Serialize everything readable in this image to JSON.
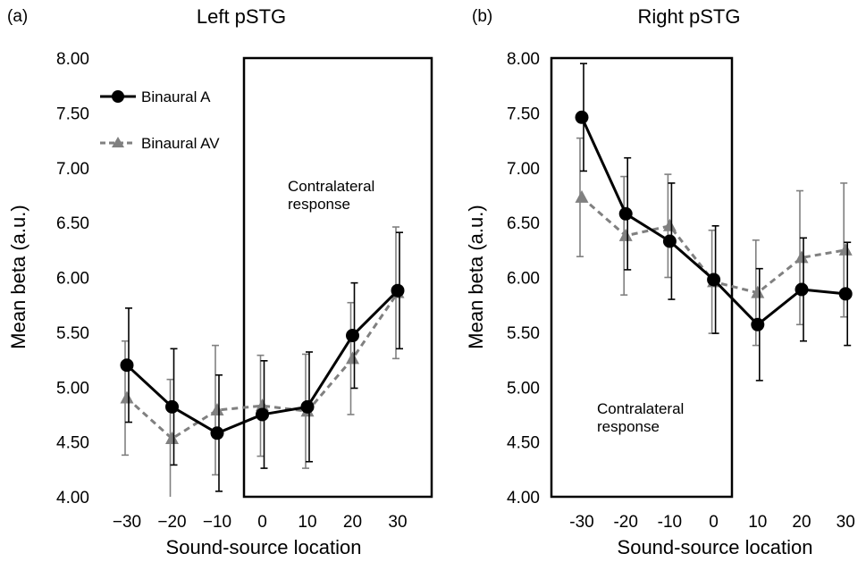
{
  "chart_data": [
    {
      "type": "line",
      "panel_label": "(a)",
      "title": "Left pSTG",
      "xlabel": "Sound-source location",
      "ylabel": "Mean beta (a.u.)",
      "categories": [
        "−30",
        "−20",
        "−10",
        "0",
        "10",
        "20",
        "30"
      ],
      "ylim": [
        4.0,
        8.0
      ],
      "yticks": [
        "4.00",
        "4.50",
        "5.00",
        "5.50",
        "6.00",
        "6.50",
        "7.00",
        "7.50",
        "8.00"
      ],
      "series": [
        {
          "name": "Binaural A",
          "color": "#000000",
          "style": "solid",
          "marker": "circle",
          "values": [
            5.2,
            4.82,
            4.58,
            4.75,
            4.82,
            5.47,
            5.88
          ],
          "err": [
            0.52,
            0.53,
            0.53,
            0.49,
            0.5,
            0.48,
            0.53
          ]
        },
        {
          "name": "Binaural AV",
          "color": "#808080",
          "style": "dashed",
          "marker": "triangle",
          "values": [
            4.9,
            4.53,
            4.79,
            4.83,
            4.78,
            5.26,
            5.86
          ],
          "err": [
            0.52,
            0.54,
            0.59,
            0.46,
            0.52,
            0.51,
            0.6
          ]
        }
      ],
      "legend_position": "upper-left",
      "highlight": {
        "from_category": "0",
        "to_category": "30",
        "label_lines": [
          "Contralateral",
          "response"
        ]
      }
    },
    {
      "type": "line",
      "panel_label": "(b)",
      "title": "Right pSTG",
      "xlabel": "Sound-source location",
      "ylabel": "Mean beta (a.u.)",
      "categories": [
        "-30",
        "-20",
        "-10",
        "0",
        "10",
        "20",
        "30"
      ],
      "ylim": [
        4.0,
        8.0
      ],
      "yticks": [
        "4.00",
        "4.50",
        "5.00",
        "5.50",
        "6.00",
        "6.50",
        "7.00",
        "7.50",
        "8.00"
      ],
      "series": [
        {
          "name": "Binaural A",
          "color": "#000000",
          "style": "solid",
          "marker": "circle",
          "values": [
            7.46,
            6.58,
            6.33,
            5.98,
            5.57,
            5.89,
            5.85
          ],
          "err": [
            0.49,
            0.51,
            0.53,
            0.49,
            0.51,
            0.47,
            0.47
          ]
        },
        {
          "name": "Binaural AV",
          "color": "#808080",
          "style": "dashed",
          "marker": "triangle",
          "values": [
            6.73,
            6.38,
            6.47,
            5.96,
            5.86,
            6.18,
            6.25
          ],
          "err": [
            0.54,
            0.54,
            0.47,
            0.47,
            0.48,
            0.61,
            0.61
          ]
        }
      ],
      "highlight": {
        "from_category": "-30",
        "to_category": "0",
        "label_lines": [
          "Contralateral",
          "response"
        ]
      }
    }
  ]
}
